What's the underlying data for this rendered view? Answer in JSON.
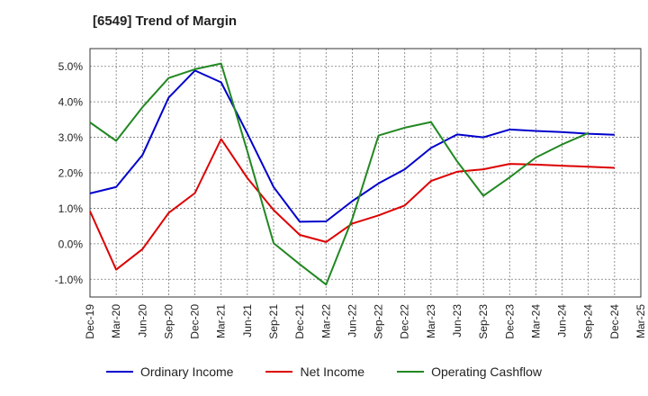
{
  "chart_data": {
    "type": "line",
    "title": "[6549]  Trend of Margin",
    "x": [
      "Dec-19",
      "Mar-20",
      "Jun-20",
      "Sep-20",
      "Dec-20",
      "Mar-21",
      "Jun-21",
      "Sep-21",
      "Dec-21",
      "Mar-22",
      "Jun-22",
      "Sep-22",
      "Dec-22",
      "Mar-23",
      "Jun-23",
      "Sep-23",
      "Dec-23",
      "Mar-24",
      "Jun-24",
      "Sep-24",
      "Dec-24",
      "Mar-25"
    ],
    "ylim": [
      -1.5,
      5.5
    ],
    "yticks": [
      -1.0,
      0.0,
      1.0,
      2.0,
      3.0,
      4.0,
      5.0
    ],
    "ytick_labels": [
      "-1.0%",
      "0.0%",
      "1.0%",
      "2.0%",
      "3.0%",
      "4.0%",
      "5.0%"
    ],
    "grid": true,
    "legend_position": "bottom",
    "series": [
      {
        "name": "Ordinary Income",
        "color": "#0000cc",
        "values": [
          1.42,
          1.6,
          2.5,
          4.12,
          4.88,
          4.55,
          3.1,
          1.6,
          0.62,
          0.63,
          1.2,
          1.7,
          2.1,
          2.7,
          3.08,
          3.0,
          3.22,
          3.18,
          3.15,
          3.1,
          3.07,
          null
        ]
      },
      {
        "name": "Net Income",
        "color": "#dd0000",
        "values": [
          0.92,
          -0.73,
          -0.15,
          0.87,
          1.43,
          2.95,
          1.85,
          0.95,
          0.25,
          0.05,
          0.57,
          0.8,
          1.08,
          1.77,
          2.03,
          2.1,
          2.25,
          2.23,
          2.2,
          2.17,
          2.14,
          null
        ]
      },
      {
        "name": "Operating Cashflow",
        "color": "#228822",
        "values": [
          3.42,
          2.9,
          3.85,
          4.67,
          4.92,
          5.08,
          2.6,
          0.02,
          -0.58,
          -1.15,
          0.7,
          3.05,
          3.27,
          3.43,
          2.32,
          1.35,
          1.87,
          2.43,
          2.8,
          3.12,
          null,
          null
        ]
      }
    ]
  }
}
